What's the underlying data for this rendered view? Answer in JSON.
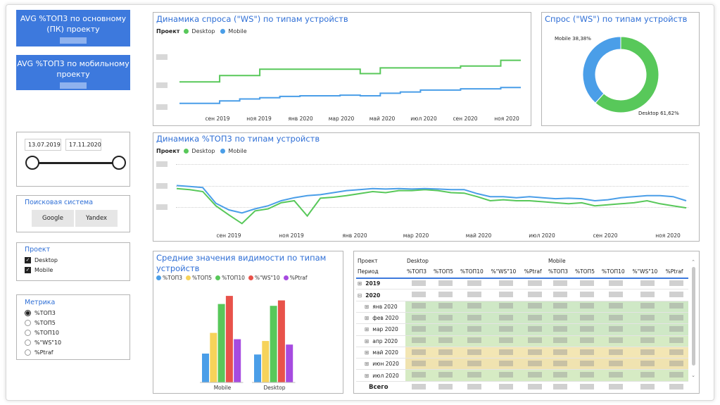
{
  "kpis": [
    {
      "label": "AVG %ТОП3 по основному (ПК) проекту"
    },
    {
      "label": "AVG %ТОП3 по мобильному проекту"
    }
  ],
  "demand_dynamics": {
    "title": "Динамика спроса (\"WS\") по типам устройств",
    "legend_title": "Проект",
    "series_names": [
      "Desktop",
      "Mobile"
    ],
    "x_labels": [
      "сен 2019",
      "ноя 2019",
      "янв 2020",
      "мар 2020",
      "май 2020",
      "июл 2020",
      "сен 2020",
      "ноя 2020"
    ]
  },
  "demand_share": {
    "title": "Спрос (\"WS\") по типам устройств",
    "mobile_label": "Mobile 38,38%",
    "desktop_label": "Desktop 61,62%"
  },
  "top3_dynamics": {
    "title": "Динамика %ТОП3 по типам устройств",
    "legend_title": "Проект",
    "series_names": [
      "Desktop",
      "Mobile"
    ],
    "x_labels": [
      "сен 2019",
      "ноя 2019",
      "янв 2020",
      "мар 2020",
      "май 2020",
      "июл 2020",
      "сен 2020",
      "ноя 2020"
    ]
  },
  "date_slicer": {
    "start": "13.07.2019",
    "end": "17.11.2020"
  },
  "search_slicer": {
    "title": "Поисковая система",
    "options": [
      "Google",
      "Yandex"
    ]
  },
  "project_slicer": {
    "title": "Проект",
    "options": [
      "Desktop",
      "Mobile"
    ],
    "checked": [
      "Desktop",
      "Mobile"
    ]
  },
  "metric_slicer": {
    "title": "Метрика",
    "options": [
      "%ТОП3",
      "%ТОП5",
      "%ТОП10",
      "%\"WS\"10",
      "%Ptraf"
    ],
    "selected": "%ТОП3"
  },
  "visibility": {
    "title_line1": "Средние значения видимости по типам",
    "title_line2": "устройств",
    "legend": [
      "%ТОП3",
      "%ТОП5",
      "%ТОП10",
      "%\"WS\"10",
      "%Ptraf"
    ],
    "category_labels": [
      "Mobile",
      "Desktop"
    ]
  },
  "matrix": {
    "row_header": "Проект",
    "period_header": "Период",
    "groups": [
      "Desktop",
      "Mobile"
    ],
    "columns": [
      "%ТОП3",
      "%ТОП5",
      "%ТОП10",
      "%\"WS\"10",
      "%Ptraf",
      "%ТОП3",
      "%ТОП5",
      "%ТОП10",
      "%\"WS\"10",
      "%Ptraf"
    ],
    "rows": [
      {
        "label": "2019",
        "level": 0,
        "toggle": "⊞"
      },
      {
        "label": "2020",
        "level": 0,
        "toggle": "⊟"
      },
      {
        "label": "янв 2020",
        "level": 1,
        "toggle": "⊞"
      },
      {
        "label": "фев 2020",
        "level": 1,
        "toggle": "⊞"
      },
      {
        "label": "мар 2020",
        "level": 1,
        "toggle": "⊞"
      },
      {
        "label": "апр 2020",
        "level": 1,
        "toggle": "⊞"
      },
      {
        "label": "май 2020",
        "level": 1,
        "toggle": "⊞"
      },
      {
        "label": "июн 2020",
        "level": 1,
        "toggle": "⊞"
      },
      {
        "label": "июл 2020",
        "level": 1,
        "toggle": "⊞"
      }
    ],
    "total_label": "Всего",
    "row_shading": [
      "none",
      "none",
      "#cfe8c6",
      "#cfe8c6",
      "#cfe8c6",
      "#d6ebc4",
      "#f3e6b4",
      "#f0e3b0",
      "#d6ebc4"
    ]
  },
  "chart_data": [
    {
      "type": "line",
      "title": "Динамика спроса (\"WS\") по типам устройств",
      "x": [
        "2019-07",
        "2019-08",
        "2019-09",
        "2019-10",
        "2019-11",
        "2019-12",
        "2020-01",
        "2020-02",
        "2020-03",
        "2020-04",
        "2020-05",
        "2020-06",
        "2020-07",
        "2020-08",
        "2020-09",
        "2020-10",
        "2020-11"
      ],
      "series": [
        {
          "name": "Desktop",
          "color": "#58c85a",
          "values": [
            0.42,
            0.42,
            0.52,
            0.52,
            0.62,
            0.62,
            0.62,
            0.62,
            0.62,
            0.55,
            0.64,
            0.64,
            0.64,
            0.64,
            0.67,
            0.67,
            0.76
          ]
        },
        {
          "name": "Mobile",
          "color": "#4a9ee8",
          "values": [
            0.08,
            0.08,
            0.12,
            0.15,
            0.17,
            0.19,
            0.2,
            0.2,
            0.21,
            0.2,
            0.24,
            0.26,
            0.29,
            0.29,
            0.31,
            0.31,
            0.33
          ]
        }
      ]
    },
    {
      "type": "pie",
      "title": "Спрос (\"WS\") по типам устройств",
      "categories": [
        "Mobile",
        "Desktop"
      ],
      "values": [
        38.38,
        61.62
      ],
      "colors": [
        "#4a9ee8",
        "#58c85a"
      ]
    },
    {
      "type": "line",
      "title": "Динамика %ТОП3 по типам устройств",
      "series": [
        {
          "name": "Desktop",
          "color": "#58c85a",
          "values": [
            0.74,
            0.72,
            0.68,
            0.4,
            0.22,
            0.05,
            0.3,
            0.34,
            0.46,
            0.5,
            0.2,
            0.55,
            0.57,
            0.6,
            0.64,
            0.68,
            0.66,
            0.7,
            0.7,
            0.72,
            0.7,
            0.66,
            0.65,
            0.58,
            0.5,
            0.52,
            0.5,
            0.5,
            0.48,
            0.46,
            0.44,
            0.46,
            0.4,
            0.42,
            0.44,
            0.46,
            0.5,
            0.44,
            0.4,
            0.36
          ]
        },
        {
          "name": "Mobile",
          "color": "#4a9ee8",
          "values": [
            0.8,
            0.78,
            0.76,
            0.45,
            0.32,
            0.26,
            0.34,
            0.4,
            0.5,
            0.56,
            0.6,
            0.62,
            0.66,
            0.7,
            0.72,
            0.74,
            0.73,
            0.74,
            0.73,
            0.74,
            0.73,
            0.72,
            0.72,
            0.64,
            0.58,
            0.58,
            0.56,
            0.58,
            0.56,
            0.54,
            0.55,
            0.54,
            0.5,
            0.52,
            0.56,
            0.58,
            0.6,
            0.6,
            0.58,
            0.5
          ]
        }
      ]
    },
    {
      "type": "bar",
      "title": "Средние значения видимости по типам устройств",
      "categories": [
        "Mobile",
        "Desktop"
      ],
      "series": [
        {
          "name": "%ТОП3",
          "color": "#4a9ee8",
          "values": [
            0.32,
            0.31
          ]
        },
        {
          "name": "%ТОП5",
          "color": "#f6d35a",
          "values": [
            0.55,
            0.46
          ]
        },
        {
          "name": "%ТОП10",
          "color": "#58c85a",
          "values": [
            0.87,
            0.85
          ]
        },
        {
          "name": "%\"WS\"10",
          "color": "#e8524a",
          "values": [
            0.96,
            0.91
          ]
        },
        {
          "name": "%Ptraf",
          "color": "#a64be0",
          "values": [
            0.48,
            0.42
          ]
        }
      ]
    }
  ]
}
